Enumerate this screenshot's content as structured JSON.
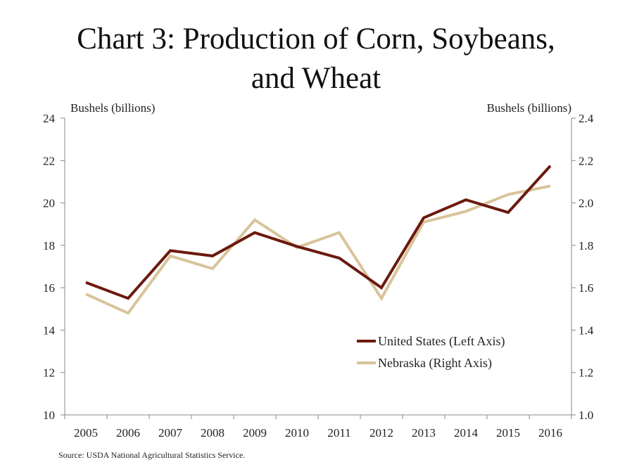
{
  "title_line1": "Chart 3: Production of Corn, Soybeans,",
  "title_line2": "and Wheat",
  "source": "Source: USDA National Agricultural Statistics Service.",
  "colors": {
    "us": "#6b1a0e",
    "nebraska": "#d8c49a",
    "axis": "#888888"
  },
  "chart_data": {
    "type": "line",
    "x": [
      "2005",
      "2006",
      "2007",
      "2008",
      "2009",
      "2010",
      "2011",
      "2012",
      "2013",
      "2014",
      "2015",
      "2016"
    ],
    "y_left_label": "Bushels (billions)",
    "y_right_label": "Bushels (billions)",
    "y_left_lim": [
      10,
      24
    ],
    "y_right_lim": [
      1.0,
      2.4
    ],
    "y_left_ticks": [
      "10",
      "12",
      "14",
      "16",
      "18",
      "20",
      "22",
      "24"
    ],
    "y_right_ticks": [
      "1.0",
      "1.2",
      "1.4",
      "1.6",
      "1.8",
      "2.0",
      "2.2",
      "2.4"
    ],
    "grid": false,
    "legend_position": "bottom-right",
    "series": [
      {
        "name": "United States (Left Axis)",
        "axis": "left",
        "values": [
          16.25,
          15.5,
          17.75,
          17.5,
          18.6,
          17.95,
          17.4,
          16.0,
          19.3,
          20.15,
          19.55,
          21.75
        ]
      },
      {
        "name": "Nebraska (Right Axis)",
        "axis": "right",
        "values": [
          1.57,
          1.48,
          1.75,
          1.69,
          1.92,
          1.79,
          1.86,
          1.55,
          1.91,
          1.96,
          2.04,
          2.08
        ]
      }
    ]
  }
}
